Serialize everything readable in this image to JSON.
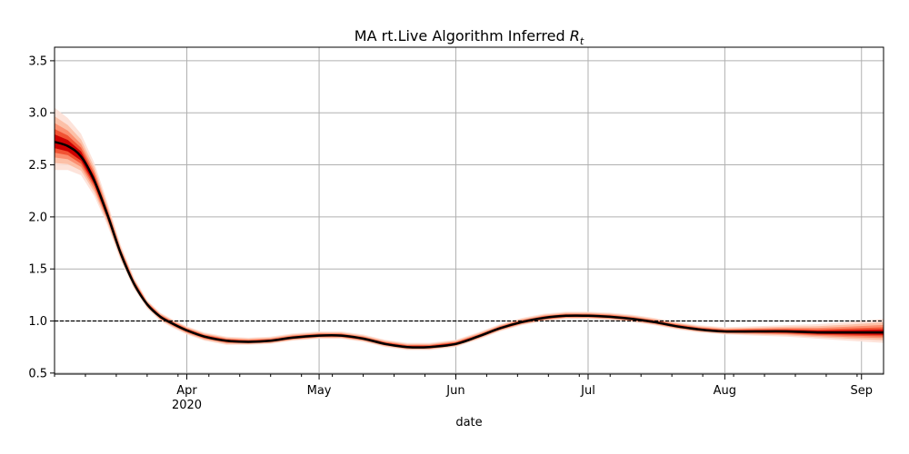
{
  "chart_data": {
    "type": "line",
    "title": "MA rt.Live Algorithm Inferred",
    "title_symbol": "R",
    "title_subscript": "t",
    "xlabel": "date",
    "ylabel": "",
    "x_range": [
      "2020-03-02",
      "2020-09-06"
    ],
    "ylim": [
      0.49,
      3.63
    ],
    "yticks": [
      {
        "value": 0.5,
        "label": "0.5"
      },
      {
        "value": 1.0,
        "label": "1.0"
      },
      {
        "value": 1.5,
        "label": "1.5"
      },
      {
        "value": 2.0,
        "label": "2.0"
      },
      {
        "value": 2.5,
        "label": "2.5"
      },
      {
        "value": 3.0,
        "label": "3.0"
      },
      {
        "value": 3.5,
        "label": "3.5"
      }
    ],
    "xticks": [
      {
        "date": "2020-04-01",
        "label": "Apr",
        "sublabel": "2020"
      },
      {
        "date": "2020-05-01",
        "label": "May",
        "sublabel": ""
      },
      {
        "date": "2020-06-01",
        "label": "Jun",
        "sublabel": ""
      },
      {
        "date": "2020-07-01",
        "label": "Jul",
        "sublabel": ""
      },
      {
        "date": "2020-08-01",
        "label": "Aug",
        "sublabel": ""
      },
      {
        "date": "2020-09-01",
        "label": "Sep",
        "sublabel": ""
      }
    ],
    "grid": true,
    "reference_line": {
      "y": 1.0,
      "style": "dashed",
      "color": "#000000"
    },
    "colors": {
      "median": "#000000",
      "band": "#cc0000",
      "band_inner": "#e8321f",
      "grid": "#b0b0b0"
    },
    "series": [
      {
        "x": [
          "2020-03-02",
          "2020-03-05",
          "2020-03-08",
          "2020-03-11",
          "2020-03-14",
          "2020-03-17",
          "2020-03-20",
          "2020-03-23",
          "2020-03-26",
          "2020-03-29",
          "2020-04-01",
          "2020-04-05",
          "2020-04-10",
          "2020-04-15",
          "2020-04-20",
          "2020-04-25",
          "2020-05-01",
          "2020-05-06",
          "2020-05-11",
          "2020-05-16",
          "2020-05-21",
          "2020-05-26",
          "2020-06-01",
          "2020-06-06",
          "2020-06-11",
          "2020-06-16",
          "2020-06-21",
          "2020-06-26",
          "2020-07-01",
          "2020-07-06",
          "2020-07-11",
          "2020-07-16",
          "2020-07-21",
          "2020-07-26",
          "2020-08-01",
          "2020-08-08",
          "2020-08-15",
          "2020-08-22",
          "2020-08-29",
          "2020-09-06"
        ],
        "y": [
          2.72,
          2.68,
          2.58,
          2.35,
          2.02,
          1.65,
          1.36,
          1.16,
          1.04,
          0.97,
          0.91,
          0.85,
          0.81,
          0.8,
          0.81,
          0.84,
          0.86,
          0.86,
          0.83,
          0.78,
          0.75,
          0.75,
          0.78,
          0.85,
          0.93,
          0.99,
          1.03,
          1.05,
          1.05,
          1.04,
          1.02,
          0.99,
          0.95,
          0.92,
          0.9,
          0.9,
          0.9,
          0.89,
          0.89,
          0.89
        ],
        "lower": [
          2.45,
          2.45,
          2.4,
          2.2,
          1.92,
          1.58,
          1.31,
          1.12,
          1.0,
          0.93,
          0.87,
          0.81,
          0.77,
          0.77,
          0.78,
          0.81,
          0.83,
          0.83,
          0.8,
          0.75,
          0.72,
          0.72,
          0.75,
          0.82,
          0.9,
          0.96,
          1.0,
          1.02,
          1.02,
          1.01,
          0.99,
          0.96,
          0.92,
          0.89,
          0.87,
          0.86,
          0.85,
          0.83,
          0.81,
          0.79
        ],
        "upper": [
          3.05,
          2.95,
          2.8,
          2.52,
          2.14,
          1.73,
          1.42,
          1.2,
          1.08,
          1.01,
          0.95,
          0.89,
          0.85,
          0.84,
          0.85,
          0.88,
          0.9,
          0.9,
          0.87,
          0.82,
          0.79,
          0.79,
          0.82,
          0.89,
          0.97,
          1.03,
          1.07,
          1.09,
          1.09,
          1.08,
          1.06,
          1.03,
          0.99,
          0.96,
          0.94,
          0.95,
          0.96,
          0.97,
          0.99,
          1.02
        ]
      }
    ]
  }
}
